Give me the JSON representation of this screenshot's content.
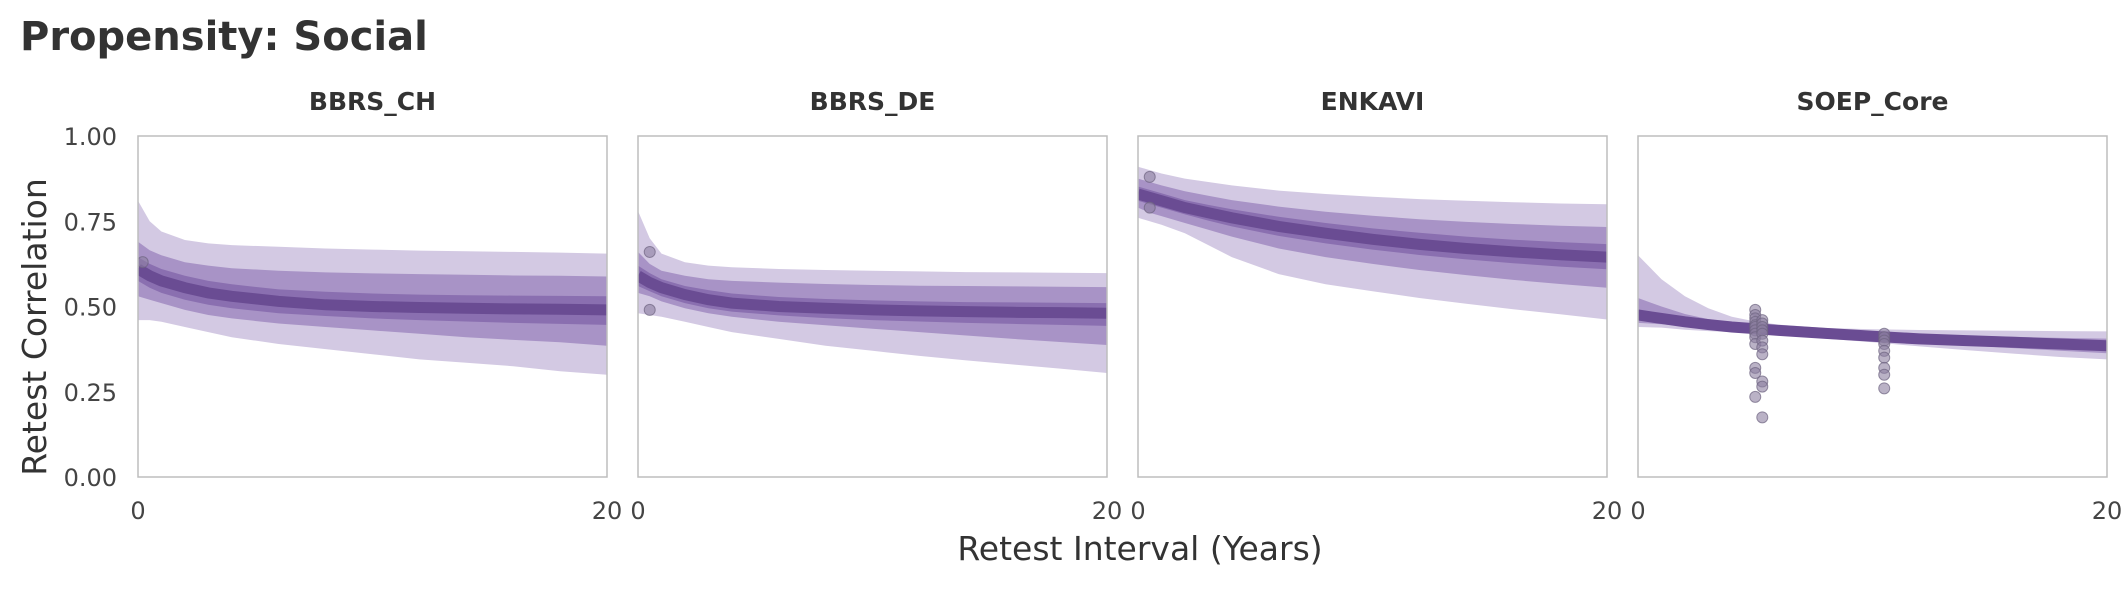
{
  "title": "Propensity: Social",
  "chart_data": {
    "type": "line",
    "xlabel": "Retest Interval (Years)",
    "ylabel": "Retest Correlation",
    "xlim": [
      0,
      20
    ],
    "ylim": [
      0,
      1
    ],
    "x_ticks": [
      "0",
      "20"
    ],
    "y_ticks": [
      "0.00",
      "0.25",
      "0.50",
      "0.75",
      "1.00"
    ],
    "grid": false,
    "colors": {
      "line": "#6a4c93",
      "band_inner": "#8a6fb0",
      "band_mid": "#a893c6",
      "band_outer": "#d3c9e3",
      "points": "#8c7fa0"
    },
    "panels": [
      {
        "name": "BBRS_CH",
        "x": [
          0,
          0.5,
          1,
          2,
          3,
          4,
          6,
          8,
          10,
          12,
          14,
          16,
          18,
          20
        ],
        "mean": [
          0.61,
          0.59,
          0.575,
          0.555,
          0.54,
          0.53,
          0.515,
          0.505,
          0.5,
          0.497,
          0.495,
          0.493,
          0.492,
          0.49
        ],
        "outer_low": [
          0.46,
          0.46,
          0.455,
          0.44,
          0.425,
          0.41,
          0.39,
          0.375,
          0.36,
          0.345,
          0.335,
          0.325,
          0.31,
          0.3
        ],
        "outer_high": [
          0.81,
          0.75,
          0.72,
          0.695,
          0.685,
          0.68,
          0.675,
          0.67,
          0.667,
          0.664,
          0.662,
          0.66,
          0.658,
          0.655
        ],
        "mid_low": [
          0.53,
          0.52,
          0.51,
          0.49,
          0.475,
          0.465,
          0.45,
          0.44,
          0.43,
          0.42,
          0.41,
          0.402,
          0.395,
          0.385
        ],
        "mid_high": [
          0.69,
          0.665,
          0.65,
          0.63,
          0.62,
          0.612,
          0.605,
          0.6,
          0.597,
          0.595,
          0.593,
          0.591,
          0.59,
          0.588
        ],
        "inner_low": [
          0.575,
          0.555,
          0.54,
          0.52,
          0.505,
          0.495,
          0.48,
          0.472,
          0.465,
          0.46,
          0.456,
          0.452,
          0.449,
          0.446
        ],
        "inner_high": [
          0.645,
          0.625,
          0.61,
          0.59,
          0.575,
          0.565,
          0.55,
          0.543,
          0.538,
          0.535,
          0.533,
          0.532,
          0.531,
          0.53
        ],
        "points": [
          [
            0.2,
            0.63
          ]
        ]
      },
      {
        "name": "BBRS_DE",
        "x": [
          0,
          0.5,
          1,
          2,
          3,
          4,
          6,
          8,
          10,
          12,
          14,
          16,
          18,
          20
        ],
        "mean": [
          0.59,
          0.57,
          0.555,
          0.535,
          0.52,
          0.51,
          0.5,
          0.495,
          0.49,
          0.487,
          0.485,
          0.483,
          0.482,
          0.48
        ],
        "outer_low": [
          0.48,
          0.475,
          0.47,
          0.455,
          0.44,
          0.425,
          0.405,
          0.385,
          0.37,
          0.355,
          0.342,
          0.33,
          0.318,
          0.305
        ],
        "outer_high": [
          0.78,
          0.7,
          0.655,
          0.63,
          0.62,
          0.615,
          0.61,
          0.607,
          0.605,
          0.603,
          0.601,
          0.6,
          0.599,
          0.598
        ],
        "mid_low": [
          0.54,
          0.53,
          0.515,
          0.495,
          0.48,
          0.47,
          0.455,
          0.445,
          0.435,
          0.425,
          0.415,
          0.405,
          0.396,
          0.387
        ],
        "mid_high": [
          0.66,
          0.625,
          0.605,
          0.59,
          0.58,
          0.575,
          0.57,
          0.566,
          0.563,
          0.561,
          0.56,
          0.559,
          0.558,
          0.557
        ],
        "inner_low": [
          0.56,
          0.545,
          0.53,
          0.51,
          0.495,
          0.485,
          0.474,
          0.466,
          0.46,
          0.456,
          0.452,
          0.449,
          0.446,
          0.443
        ],
        "inner_high": [
          0.62,
          0.598,
          0.58,
          0.56,
          0.548,
          0.538,
          0.528,
          0.522,
          0.518,
          0.515,
          0.513,
          0.512,
          0.511,
          0.51
        ],
        "points": [
          [
            0.5,
            0.66
          ],
          [
            0.5,
            0.49
          ]
        ]
      },
      {
        "name": "ENKAVI",
        "x": [
          0,
          0.5,
          1,
          2,
          3,
          4,
          6,
          8,
          10,
          12,
          14,
          16,
          18,
          20
        ],
        "mean": [
          0.83,
          0.82,
          0.81,
          0.79,
          0.775,
          0.76,
          0.735,
          0.715,
          0.697,
          0.682,
          0.67,
          0.66,
          0.652,
          0.645
        ],
        "outer_low": [
          0.76,
          0.75,
          0.74,
          0.715,
          0.68,
          0.645,
          0.595,
          0.565,
          0.545,
          0.525,
          0.508,
          0.492,
          0.477,
          0.462
        ],
        "outer_high": [
          0.91,
          0.9,
          0.89,
          0.875,
          0.865,
          0.855,
          0.84,
          0.83,
          0.822,
          0.815,
          0.81,
          0.806,
          0.802,
          0.8
        ],
        "mid_low": [
          0.79,
          0.775,
          0.765,
          0.745,
          0.725,
          0.705,
          0.67,
          0.645,
          0.625,
          0.607,
          0.592,
          0.578,
          0.566,
          0.555
        ],
        "mid_high": [
          0.875,
          0.865,
          0.855,
          0.838,
          0.825,
          0.812,
          0.793,
          0.778,
          0.766,
          0.756,
          0.748,
          0.742,
          0.737,
          0.733
        ],
        "inner_low": [
          0.81,
          0.8,
          0.79,
          0.77,
          0.752,
          0.735,
          0.707,
          0.685,
          0.667,
          0.651,
          0.638,
          0.627,
          0.617,
          0.609
        ],
        "inner_high": [
          0.852,
          0.842,
          0.832,
          0.812,
          0.798,
          0.785,
          0.763,
          0.745,
          0.729,
          0.716,
          0.705,
          0.696,
          0.689,
          0.683
        ],
        "points": [
          [
            0.5,
            0.88
          ],
          [
            0.5,
            0.79
          ]
        ]
      },
      {
        "name": "SOEP_Core",
        "x": [
          0,
          1,
          2,
          3,
          4,
          5,
          6,
          8,
          10,
          12,
          14,
          16,
          18,
          20
        ],
        "mean": [
          0.475,
          0.465,
          0.455,
          0.447,
          0.44,
          0.435,
          0.43,
          0.421,
          0.413,
          0.405,
          0.4,
          0.395,
          0.39,
          0.385
        ],
        "outer_low": [
          0.44,
          0.438,
          0.432,
          0.428,
          0.425,
          0.42,
          0.416,
          0.406,
          0.395,
          0.383,
          0.372,
          0.362,
          0.352,
          0.345
        ],
        "outer_high": [
          0.65,
          0.58,
          0.53,
          0.495,
          0.47,
          0.456,
          0.447,
          0.437,
          0.433,
          0.431,
          0.43,
          0.429,
          0.428,
          0.427
        ],
        "mid_low": [
          0.452,
          0.448,
          0.442,
          0.436,
          0.431,
          0.426,
          0.422,
          0.413,
          0.404,
          0.394,
          0.386,
          0.378,
          0.37,
          0.363
        ],
        "mid_high": [
          0.525,
          0.5,
          0.478,
          0.463,
          0.453,
          0.446,
          0.44,
          0.43,
          0.423,
          0.418,
          0.414,
          0.411,
          0.408,
          0.406
        ],
        "inner_low": [
          0.462,
          0.455,
          0.448,
          0.441,
          0.435,
          0.43,
          0.425,
          0.416,
          0.408,
          0.399,
          0.393,
          0.387,
          0.381,
          0.375
        ],
        "inner_high": [
          0.49,
          0.478,
          0.465,
          0.455,
          0.447,
          0.441,
          0.436,
          0.426,
          0.418,
          0.411,
          0.407,
          0.403,
          0.399,
          0.395
        ],
        "points": [
          [
            5,
            0.49
          ],
          [
            5,
            0.475
          ],
          [
            5,
            0.465
          ],
          [
            5,
            0.455
          ],
          [
            5,
            0.445
          ],
          [
            5,
            0.44
          ],
          [
            5,
            0.43
          ],
          [
            5,
            0.42
          ],
          [
            5,
            0.41
          ],
          [
            5,
            0.39
          ],
          [
            5,
            0.32
          ],
          [
            5,
            0.305
          ],
          [
            5,
            0.235
          ],
          [
            5.3,
            0.46
          ],
          [
            5.3,
            0.45
          ],
          [
            5.3,
            0.44
          ],
          [
            5.3,
            0.43
          ],
          [
            5.3,
            0.42
          ],
          [
            5.3,
            0.4
          ],
          [
            5.3,
            0.38
          ],
          [
            5.3,
            0.36
          ],
          [
            5.3,
            0.28
          ],
          [
            5.3,
            0.265
          ],
          [
            5.3,
            0.175
          ],
          [
            10.5,
            0.42
          ],
          [
            10.5,
            0.41
          ],
          [
            10.5,
            0.4
          ],
          [
            10.5,
            0.39
          ],
          [
            10.5,
            0.37
          ],
          [
            10.5,
            0.35
          ],
          [
            10.5,
            0.32
          ],
          [
            10.5,
            0.3
          ],
          [
            10.5,
            0.26
          ]
        ]
      }
    ]
  }
}
